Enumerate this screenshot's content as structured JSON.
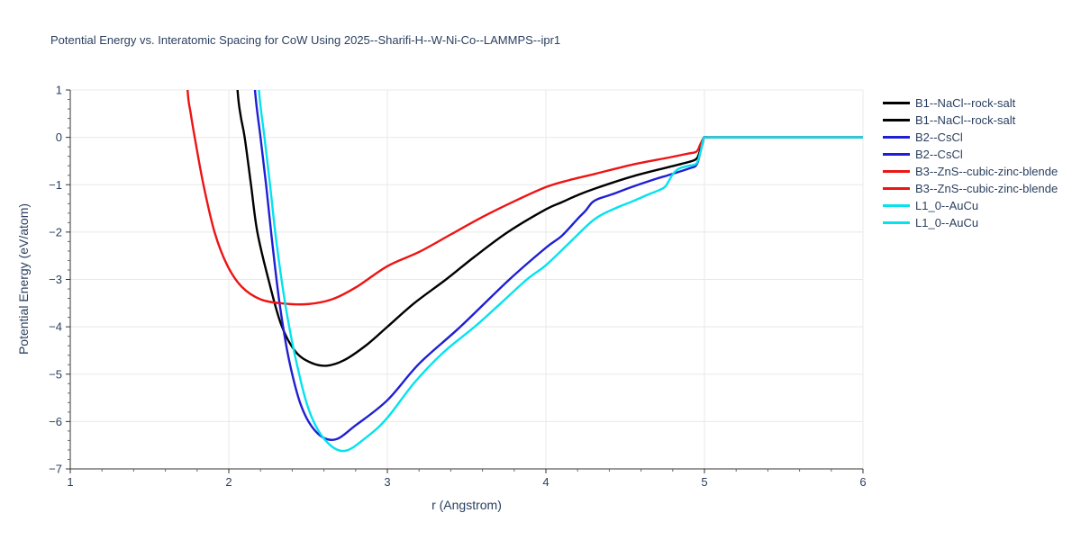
{
  "title": "Potential Energy vs. Interatomic Spacing for CoW Using 2025--Sharifi-H--W-Ni-Co--LAMMPS--ipr1",
  "colors": {
    "text": "#2a3f5f",
    "grid": "#e8e8e8",
    "axis_line": "#333333",
    "major_tick": "#333333",
    "minor_tick": "#666666",
    "background": "#ffffff"
  },
  "chart_data": {
    "type": "line",
    "title": "Potential Energy vs. Interatomic Spacing for CoW Using 2025--Sharifi-H--W-Ni-Co--LAMMPS--ipr1",
    "xlabel": "r (Angstrom)",
    "ylabel": "Potential Energy (eV/atom)",
    "xlim": [
      1,
      6
    ],
    "ylim": [
      -7,
      1
    ],
    "x_major_ticks": [
      1,
      2,
      3,
      4,
      5,
      6
    ],
    "y_major_ticks": [
      1,
      0,
      -1,
      -2,
      -3,
      -4,
      -5,
      -6,
      -7
    ],
    "minor_tick_step": 0.2,
    "grid": true,
    "legend_position": "right",
    "legend": [
      {
        "label": "B1--NaCl--rock-salt",
        "color": "#000000",
        "curve": 0
      },
      {
        "label": "B1--NaCl--rock-salt",
        "color": "#000000",
        "curve": 0
      },
      {
        "label": "B2--CsCl",
        "color": "#1f1fd3",
        "curve": 1
      },
      {
        "label": "B2--CsCl",
        "color": "#1f1fd3",
        "curve": 1
      },
      {
        "label": "B3--ZnS--cubic-zinc-blende",
        "color": "#ed1414",
        "curve": 2
      },
      {
        "label": "B3--ZnS--cubic-zinc-blende",
        "color": "#ed1414",
        "curve": 2
      },
      {
        "label": "L1_0--AuCu",
        "color": "#05e2ee",
        "curve": 3
      },
      {
        "label": "L1_0--AuCu",
        "color": "#05e2ee",
        "curve": 3
      }
    ],
    "series": [
      {
        "name": "B1--NaCl--rock-salt",
        "color": "#000000",
        "min_point": [
          2.62,
          -4.82
        ],
        "points": [
          [
            2.03,
            2.5
          ],
          [
            2.055,
            1.0
          ],
          [
            2.075,
            0.45
          ],
          [
            2.1,
            0.0
          ],
          [
            2.14,
            -1.0
          ],
          [
            2.18,
            -2.0
          ],
          [
            2.25,
            -3.0
          ],
          [
            2.33,
            -3.95
          ],
          [
            2.42,
            -4.52
          ],
          [
            2.52,
            -4.76
          ],
          [
            2.62,
            -4.82
          ],
          [
            2.73,
            -4.7
          ],
          [
            2.87,
            -4.38
          ],
          [
            3.0,
            -4.0
          ],
          [
            3.17,
            -3.5
          ],
          [
            3.37,
            -3.0
          ],
          [
            3.55,
            -2.52
          ],
          [
            3.76,
            -2.0
          ],
          [
            4.0,
            -1.52
          ],
          [
            4.1,
            -1.37
          ],
          [
            4.2,
            -1.22
          ],
          [
            4.31,
            -1.08
          ],
          [
            4.54,
            -0.83
          ],
          [
            4.77,
            -0.63
          ],
          [
            4.9,
            -0.52
          ],
          [
            4.95,
            -0.45
          ],
          [
            4.972,
            -0.28
          ],
          [
            4.988,
            -0.1
          ],
          [
            5.0,
            0.0
          ],
          [
            5.05,
            0.0
          ],
          [
            5.5,
            0.0
          ],
          [
            6.0,
            0.0
          ]
        ]
      },
      {
        "name": "B2--CsCl",
        "color": "#1f1fd3",
        "min_point": [
          2.67,
          -6.38
        ],
        "points": [
          [
            2.14,
            2.5
          ],
          [
            2.165,
            1.0
          ],
          [
            2.2,
            0.0
          ],
          [
            2.235,
            -1.0
          ],
          [
            2.27,
            -2.1
          ],
          [
            2.32,
            -3.5
          ],
          [
            2.38,
            -4.7
          ],
          [
            2.46,
            -5.7
          ],
          [
            2.56,
            -6.25
          ],
          [
            2.67,
            -6.38
          ],
          [
            2.8,
            -6.08
          ],
          [
            3.0,
            -5.55
          ],
          [
            3.2,
            -4.78
          ],
          [
            3.46,
            -4.0
          ],
          [
            3.77,
            -3.0
          ],
          [
            4.0,
            -2.33
          ],
          [
            4.1,
            -2.08
          ],
          [
            4.2,
            -1.72
          ],
          [
            4.25,
            -1.55
          ],
          [
            4.29,
            -1.38
          ],
          [
            4.33,
            -1.3
          ],
          [
            4.42,
            -1.2
          ],
          [
            4.54,
            -1.05
          ],
          [
            4.7,
            -0.87
          ],
          [
            4.77,
            -0.8
          ],
          [
            4.9,
            -0.66
          ],
          [
            4.95,
            -0.58
          ],
          [
            4.975,
            -0.3
          ],
          [
            4.99,
            -0.1
          ],
          [
            5.0,
            0.0
          ],
          [
            5.05,
            0.0
          ],
          [
            5.5,
            0.0
          ],
          [
            6.0,
            0.0
          ]
        ]
      },
      {
        "name": "B3--ZnS--cubic-zinc-blende",
        "color": "#ed1414",
        "min_point": [
          2.5,
          -3.52
        ],
        "points": [
          [
            1.72,
            2.5
          ],
          [
            1.74,
            1.0
          ],
          [
            1.76,
            0.5
          ],
          [
            1.785,
            0.0
          ],
          [
            1.84,
            -1.0
          ],
          [
            1.91,
            -2.0
          ],
          [
            1.99,
            -2.7
          ],
          [
            2.08,
            -3.15
          ],
          [
            2.2,
            -3.42
          ],
          [
            2.35,
            -3.51
          ],
          [
            2.5,
            -3.52
          ],
          [
            2.65,
            -3.42
          ],
          [
            2.8,
            -3.17
          ],
          [
            3.0,
            -2.72
          ],
          [
            3.2,
            -2.42
          ],
          [
            3.4,
            -2.05
          ],
          [
            3.6,
            -1.68
          ],
          [
            3.8,
            -1.35
          ],
          [
            4.0,
            -1.05
          ],
          [
            4.15,
            -0.9
          ],
          [
            4.31,
            -0.77
          ],
          [
            4.54,
            -0.58
          ],
          [
            4.77,
            -0.43
          ],
          [
            4.9,
            -0.34
          ],
          [
            4.95,
            -0.3
          ],
          [
            4.972,
            -0.16
          ],
          [
            4.988,
            -0.05
          ],
          [
            5.0,
            0.0
          ],
          [
            5.05,
            0.0
          ],
          [
            5.5,
            0.0
          ],
          [
            6.0,
            0.0
          ]
        ]
      },
      {
        "name": "L1_0--AuCu",
        "color": "#05e2ee",
        "min_point": [
          2.73,
          -6.62
        ],
        "points": [
          [
            2.165,
            2.5
          ],
          [
            2.19,
            1.0
          ],
          [
            2.225,
            0.0
          ],
          [
            2.26,
            -1.0
          ],
          [
            2.3,
            -2.2
          ],
          [
            2.36,
            -3.6
          ],
          [
            2.43,
            -4.8
          ],
          [
            2.51,
            -5.8
          ],
          [
            2.61,
            -6.4
          ],
          [
            2.73,
            -6.62
          ],
          [
            2.88,
            -6.3
          ],
          [
            3.0,
            -5.92
          ],
          [
            3.17,
            -5.18
          ],
          [
            3.35,
            -4.55
          ],
          [
            3.55,
            -4.0
          ],
          [
            3.7,
            -3.55
          ],
          [
            3.88,
            -3.0
          ],
          [
            4.0,
            -2.7
          ],
          [
            4.15,
            -2.22
          ],
          [
            4.31,
            -1.72
          ],
          [
            4.45,
            -1.48
          ],
          [
            4.54,
            -1.36
          ],
          [
            4.65,
            -1.2
          ],
          [
            4.71,
            -1.12
          ],
          [
            4.755,
            -1.03
          ],
          [
            4.8,
            -0.78
          ],
          [
            4.84,
            -0.66
          ],
          [
            4.9,
            -0.6
          ],
          [
            4.95,
            -0.55
          ],
          [
            4.975,
            -0.3
          ],
          [
            4.99,
            -0.08
          ],
          [
            5.0,
            0.0
          ],
          [
            5.05,
            0.0
          ],
          [
            5.5,
            0.0
          ],
          [
            6.0,
            0.0
          ]
        ]
      }
    ]
  }
}
